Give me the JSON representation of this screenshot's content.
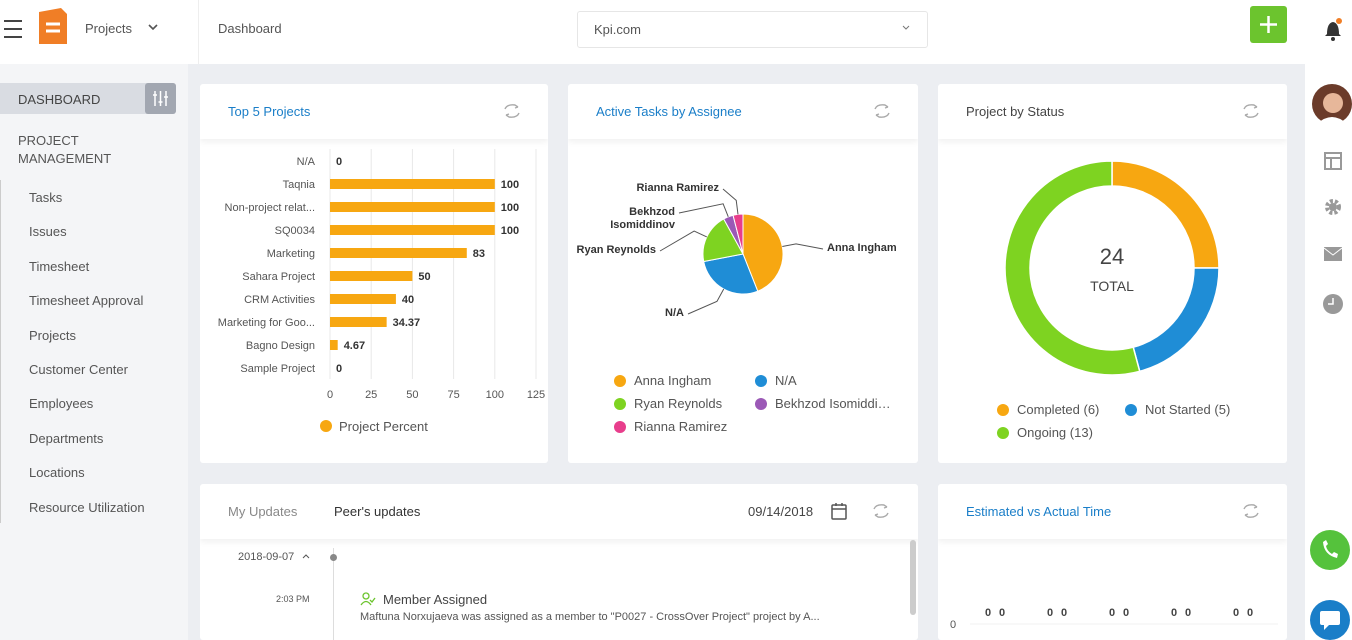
{
  "header": {
    "app": "Projects",
    "breadcrumb": "Dashboard",
    "search": "Kpi.com"
  },
  "sidebar": {
    "active": "DASHBOARD",
    "section": "PROJECT MANAGEMENT",
    "items": [
      "Tasks",
      "Issues",
      "Timesheet",
      "Timesheet Approval",
      "Projects",
      "Customer Center",
      "Employees",
      "Departments",
      "Locations",
      "Resource Utilization"
    ]
  },
  "updates": {
    "tabs": [
      "My Updates",
      "Peer's updates"
    ],
    "date": "09/14/2018",
    "entries": [
      {
        "date": "2018-09-07",
        "time": "2:03 PM",
        "title": "Member Assigned",
        "text": "Maftuna Norxujaeva was assigned as a member to \"P0027 - CrossOver Project\" project by A..."
      }
    ]
  },
  "chart_data": [
    {
      "type": "bar",
      "orientation": "horizontal",
      "title": "Top 5 Projects",
      "categories": [
        "N/A",
        "Taqnia",
        "Non-project relat...",
        "SQ0034",
        "Marketing",
        "Sahara Project",
        "CRM Activities",
        "Marketing for Goo...",
        "Bagno Design",
        "Sample Project"
      ],
      "series": [
        {
          "name": "Project Percent",
          "color": "#f7a711",
          "values": [
            0,
            100,
            100,
            100,
            83,
            50,
            40,
            34.37,
            4.67,
            0
          ]
        }
      ],
      "xlim": [
        0,
        125
      ],
      "xticks": [
        0,
        25,
        50,
        75,
        100,
        125
      ],
      "grid": true
    },
    {
      "type": "pie",
      "title": "Active Tasks by Assignee",
      "categories": [
        "Anna Ingham",
        "N/A",
        "Ryan Reynolds",
        "Bekhzod Isomiddinov",
        "Rianna Ramirez"
      ],
      "values": [
        11,
        7,
        5,
        1,
        1
      ],
      "colors": [
        "#f7a711",
        "#1f8dd6",
        "#7ed321",
        "#9b59b6",
        "#e83e8c"
      ]
    },
    {
      "type": "donut",
      "title": "Project by Status",
      "categories": [
        "Completed",
        "Not Started",
        "Ongoing"
      ],
      "values": [
        6,
        5,
        13
      ],
      "value_labels": [
        "(6)",
        "(5)",
        "(13)"
      ],
      "colors": [
        "#f7a711",
        "#1f8dd6",
        "#7ed321"
      ],
      "total": 24,
      "total_label": "TOTAL"
    },
    {
      "type": "bar",
      "title": "Estimated vs Actual Time",
      "categories": [
        null,
        null,
        null,
        null,
        null
      ],
      "series": [
        {
          "values": [
            0,
            0,
            0,
            0,
            0
          ]
        },
        {
          "values": [
            0,
            0,
            0,
            0,
            0
          ]
        }
      ],
      "yticks": [
        0
      ]
    }
  ]
}
